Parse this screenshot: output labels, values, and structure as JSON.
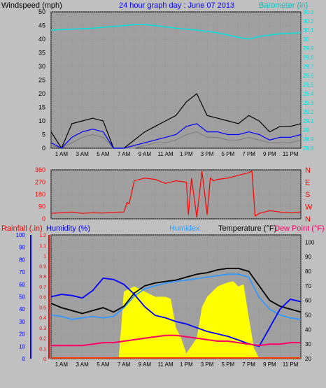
{
  "page": {
    "background": "#c0c0c0",
    "plot_background": "#a0a0a0"
  },
  "chart_data": [
    {
      "type": "line",
      "title": "24 hour graph day : June 07 2013",
      "ylabel_left": "Windspeed (mph)",
      "ylabel_right": "Barometer (in)",
      "ylim_left": [
        0,
        50
      ],
      "yticks_left": [
        "0",
        "5",
        "10",
        "15",
        "20",
        "25",
        "30",
        "35",
        "40",
        "45",
        "50"
      ],
      "ylim_right": [
        28.8,
        30.3
      ],
      "yticks_right": [
        "28.8",
        "28.9",
        "29",
        "29.1",
        "29.2",
        "29.3",
        "29.4",
        "29.5",
        "29.6",
        "29.7",
        "29.8",
        "29.9",
        "30",
        "30.1",
        "30.2",
        "30.3"
      ],
      "x_ticks": [
        "1 AM",
        "3 AM",
        "5 AM",
        "7 AM",
        "9 AM",
        "11 AM",
        "1 PM",
        "3 PM",
        "5 PM",
        "7 PM",
        "9 PM",
        "11 PM"
      ],
      "grid": true,
      "colors": {
        "barometer": "#00e0e0",
        "gust": "#000000",
        "average": "#0000ff",
        "speed": "#808080"
      },
      "series": [
        {
          "key": "barometer",
          "x": [
            0,
            2,
            4,
            6,
            8,
            9,
            10,
            12,
            14,
            16,
            18,
            19,
            20,
            22,
            24
          ],
          "values": [
            30.1,
            30.11,
            30.12,
            30.14,
            30.16,
            30.16,
            30.15,
            30.12,
            30.1,
            30.07,
            30.02,
            30.0,
            30.03,
            30.06,
            30.07
          ]
        },
        {
          "key": "gust",
          "x": [
            0,
            1,
            2,
            3,
            4,
            5,
            6,
            7,
            8,
            9,
            10,
            11,
            12,
            13,
            14,
            15,
            16,
            17,
            18,
            19,
            20,
            21,
            22,
            23,
            24
          ],
          "values": [
            6,
            0,
            9,
            10,
            11,
            10,
            0,
            0,
            3,
            6,
            8,
            10,
            12,
            17,
            20,
            12,
            11,
            10,
            9,
            12,
            10,
            6,
            8,
            8,
            9
          ]
        },
        {
          "key": "average",
          "x": [
            0,
            1,
            2,
            3,
            4,
            5,
            6,
            7,
            8,
            9,
            10,
            11,
            12,
            13,
            14,
            15,
            16,
            17,
            18,
            19,
            20,
            21,
            22,
            23,
            24
          ],
          "values": [
            2,
            0,
            4,
            6,
            7,
            6,
            0,
            0,
            1,
            2,
            3,
            4,
            5,
            8,
            9,
            6,
            6,
            5,
            5,
            6,
            5,
            3,
            4,
            4,
            5
          ]
        },
        {
          "key": "speed",
          "x": [
            0,
            1,
            2,
            3,
            4,
            5,
            6,
            7,
            8,
            9,
            10,
            11,
            12,
            13,
            14,
            15,
            16,
            17,
            18,
            19,
            20,
            21,
            22,
            23,
            24
          ],
          "values": [
            1,
            0,
            2,
            4,
            5,
            4,
            0,
            0,
            0,
            1,
            2,
            2,
            3,
            5,
            6,
            4,
            4,
            3,
            3,
            4,
            3,
            2,
            2,
            2,
            3
          ]
        }
      ]
    },
    {
      "type": "line",
      "yticks_left": [
        "0",
        "90",
        "180",
        "270",
        "360"
      ],
      "ylim_left": [
        0,
        360
      ],
      "yticks_right": [
        "N",
        "E",
        "S",
        "W",
        "N"
      ],
      "colors": {
        "direction": "#ff0000"
      },
      "series": [
        {
          "key": "direction",
          "x": [
            0,
            1,
            2,
            3,
            4,
            5,
            6,
            7,
            7.3,
            7.5,
            8,
            9,
            10,
            11,
            12,
            13,
            13.2,
            13.5,
            14,
            14.5,
            15,
            15.3,
            15.6,
            16,
            17,
            18,
            19,
            19.3,
            19.6,
            20,
            21,
            22,
            23,
            24
          ],
          "values": [
            40,
            45,
            50,
            40,
            45,
            42,
            48,
            50,
            120,
            110,
            280,
            300,
            290,
            260,
            280,
            270,
            30,
            300,
            10,
            350,
            30,
            300,
            280,
            290,
            300,
            320,
            340,
            350,
            20,
            40,
            60,
            50,
            45,
            50
          ]
        }
      ]
    },
    {
      "type": "line",
      "labels": {
        "rainfall": "Rainfall (.in)",
        "humidity": "Humidity (%)",
        "humidex": "Humidex",
        "temperature": "Temperature (°F)",
        "dewpoint": "Dew Point (°F)"
      },
      "ylim_humidity": [
        0,
        100
      ],
      "yticks_humidity": [
        "0",
        "10",
        "20",
        "30",
        "40",
        "50",
        "60",
        "70",
        "80",
        "90",
        "100"
      ],
      "ylim_rain": [
        0,
        1.2
      ],
      "yticks_rain": [
        "0",
        "0.1",
        "0.2",
        "0.3",
        "0.4",
        "0.5",
        "0.6",
        "0.7",
        "0.8",
        "0.9",
        "1",
        "1.1",
        "1.2"
      ],
      "ylim_temp": [
        20,
        105
      ],
      "yticks_temp": [
        "20",
        "30",
        "40",
        "50",
        "60",
        "70",
        "80",
        "90",
        "100"
      ],
      "colors": {
        "rain": "#ffff00",
        "humidity": "#0000ff",
        "humidex": "#3399ff",
        "temperature": "#000000",
        "dewpoint": "#ff0066",
        "rain_bar": "#ff4000"
      },
      "series": [
        {
          "key": "rain",
          "x": [
            0,
            5,
            6,
            6.5,
            7,
            8,
            9,
            10,
            11,
            11.5,
            12,
            12.5,
            13,
            14,
            14.5,
            15,
            16,
            16.5,
            17,
            17.5,
            18,
            18.5,
            19,
            19.5,
            20,
            21,
            22,
            23,
            24
          ],
          "values": [
            0,
            0,
            0,
            0,
            0.65,
            0.7,
            0.65,
            0.6,
            0.6,
            0.58,
            0.3,
            0.2,
            0.05,
            0.2,
            0.5,
            0.6,
            0.7,
            0.72,
            0.74,
            0.75,
            0.7,
            0.72,
            0.4,
            0.1,
            0,
            0,
            0,
            0,
            0
          ]
        },
        {
          "key": "humidity",
          "x": [
            0,
            1,
            2,
            3,
            4,
            5,
            6,
            7,
            8,
            9,
            10,
            11,
            12,
            13,
            14,
            15,
            16,
            17,
            18,
            19,
            20,
            21,
            22,
            23,
            24
          ],
          "values": [
            50,
            52,
            51,
            49,
            55,
            65,
            64,
            60,
            52,
            42,
            35,
            33,
            30,
            28,
            25,
            22,
            20,
            18,
            15,
            12,
            10,
            25,
            40,
            48,
            46
          ]
        },
        {
          "key": "humidex",
          "x": [
            0,
            1,
            2,
            3,
            4,
            5,
            6,
            7,
            8,
            9,
            10,
            11,
            12,
            13,
            14,
            15,
            16,
            17,
            18,
            19,
            20,
            21,
            22,
            23,
            24
          ],
          "values": [
            50,
            49,
            47,
            48,
            49,
            48,
            49,
            55,
            63,
            68,
            70,
            72,
            73,
            74,
            75,
            76,
            77,
            78,
            78,
            76,
            62,
            54,
            50,
            48,
            47
          ]
        },
        {
          "key": "temperature",
          "x": [
            0,
            1,
            2,
            3,
            4,
            5,
            6,
            7,
            8,
            9,
            10,
            11,
            12,
            13,
            14,
            15,
            16,
            17,
            18,
            19,
            20,
            21,
            22,
            23,
            24
          ],
          "values": [
            58,
            55,
            53,
            51,
            53,
            55,
            52,
            56,
            65,
            70,
            72,
            73,
            74,
            76,
            78,
            79,
            81,
            82,
            82,
            80,
            70,
            60,
            56,
            54,
            52
          ]
        },
        {
          "key": "dewpoint",
          "x": [
            0,
            1,
            2,
            3,
            4,
            5,
            6,
            7,
            8,
            9,
            10,
            11,
            12,
            13,
            14,
            15,
            16,
            17,
            18,
            19,
            20,
            21,
            22,
            23,
            24
          ],
          "values": [
            29,
            29,
            29,
            29,
            30,
            31,
            31,
            32,
            33,
            34,
            35,
            36,
            36,
            35,
            34,
            33,
            32,
            32,
            31,
            30,
            29,
            30,
            30,
            31,
            31
          ]
        }
      ]
    }
  ]
}
